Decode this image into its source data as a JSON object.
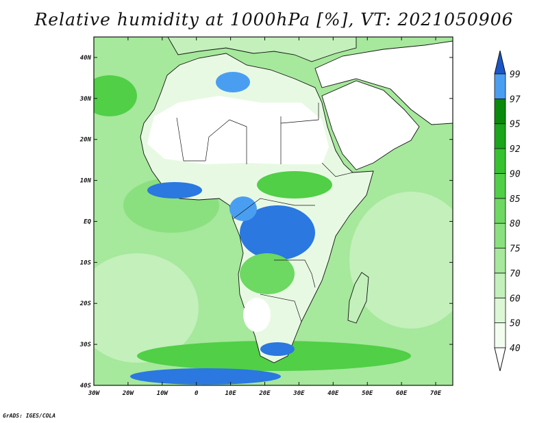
{
  "map": {
    "title": "Relative humidity at 1000hPa [%], VT: 2021050906",
    "credit": "GrADS: IGES/COLA",
    "lon_ticks": [
      {
        "value": -30,
        "label": "30W"
      },
      {
        "value": -20,
        "label": "20W"
      },
      {
        "value": -10,
        "label": "10W"
      },
      {
        "value": 0,
        "label": "0"
      },
      {
        "value": 10,
        "label": "10E"
      },
      {
        "value": 20,
        "label": "20E"
      },
      {
        "value": 30,
        "label": "30E"
      },
      {
        "value": 40,
        "label": "40E"
      },
      {
        "value": 50,
        "label": "50E"
      },
      {
        "value": 60,
        "label": "60E"
      },
      {
        "value": 70,
        "label": "70E"
      }
    ],
    "lat_ticks": [
      {
        "value": 40,
        "label": "40N"
      },
      {
        "value": 30,
        "label": "30N"
      },
      {
        "value": 20,
        "label": "20N"
      },
      {
        "value": 10,
        "label": "10N"
      },
      {
        "value": 0,
        "label": "EQ"
      },
      {
        "value": -10,
        "label": "10S"
      },
      {
        "value": -20,
        "label": "20S"
      },
      {
        "value": -30,
        "label": "30S"
      },
      {
        "value": -40,
        "label": "40S"
      }
    ],
    "extent": {
      "lon": [
        -30,
        75
      ],
      "lat": [
        -40,
        45
      ]
    }
  },
  "colorbar": {
    "levels": [
      "40",
      "50",
      "60",
      "70",
      "75",
      "80",
      "85",
      "90",
      "92",
      "95",
      "97",
      "99"
    ],
    "colors": [
      "#f2fdf0",
      "#dcf7d6",
      "#c3f0bb",
      "#a6e89c",
      "#8ae07e",
      "#6dd862",
      "#50cf47",
      "#36c22e",
      "#1aa51a",
      "#0a8a0a",
      "#4a9ef2",
      "#2a78e0",
      "#1a56c8"
    ],
    "below_color": "#ffffff",
    "above_color": "#1a56c8"
  }
}
